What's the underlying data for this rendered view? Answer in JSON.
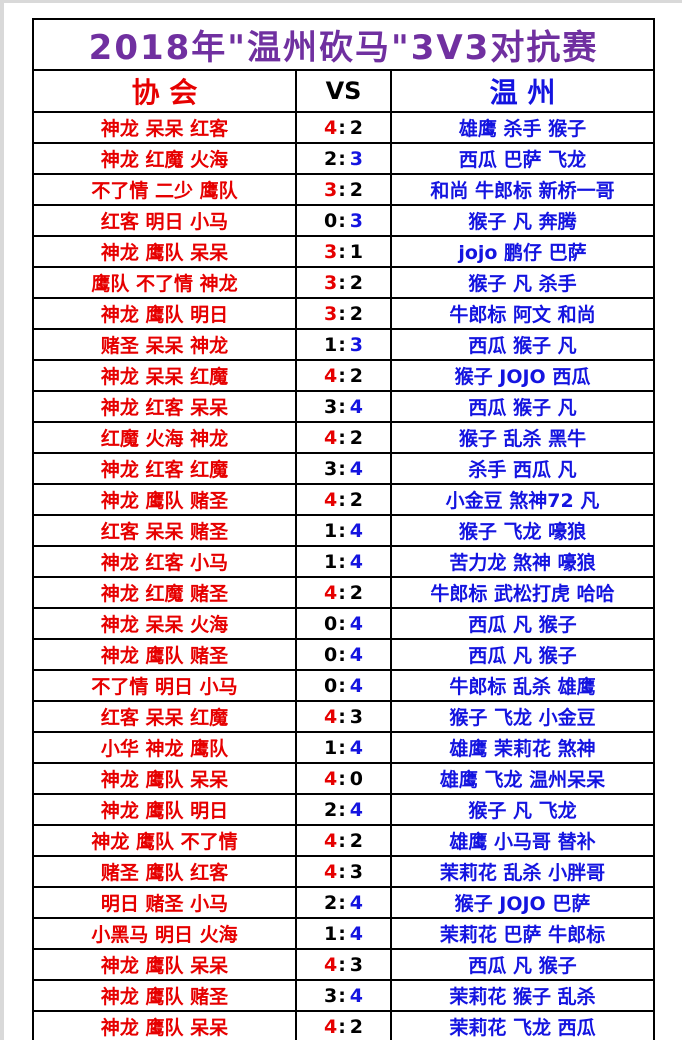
{
  "title": "2018年\"温州砍马\"3V3对抗赛",
  "header": {
    "association": "协  会",
    "vs": "VS",
    "wenzhou": "温  州"
  },
  "colors": {
    "title": "#7030A0",
    "association_text": "#E60000",
    "wenzhou_text": "#1414E0",
    "loser_score": "#000000",
    "border": "#000000",
    "page_edge": "#d9d9d9"
  },
  "rows": [
    {
      "association": "神龙 呆呆 红客",
      "score_left": "4",
      "score_right": "2",
      "winner": "left",
      "wenzhou": "雄鹰 杀手 猴子"
    },
    {
      "association": "神龙 红魔 火海",
      "score_left": "2",
      "score_right": "3",
      "winner": "right",
      "wenzhou": "西瓜 巴萨 飞龙"
    },
    {
      "association": "不了情 二少 鹰队",
      "score_left": "3",
      "score_right": "2",
      "winner": "left",
      "wenzhou": "和尚 牛郎标 新桥一哥"
    },
    {
      "association": "红客 明日 小马",
      "score_left": "0",
      "score_right": "3",
      "winner": "right",
      "wenzhou": "猴子 凡 奔腾"
    },
    {
      "association": "神龙 鹰队 呆呆",
      "score_left": "3",
      "score_right": "1",
      "winner": "left",
      "wenzhou": "jojo 鹏仔 巴萨"
    },
    {
      "association": "鹰队 不了情 神龙",
      "score_left": "3",
      "score_right": "2",
      "winner": "left",
      "wenzhou": "猴子 凡 杀手"
    },
    {
      "association": "神龙 鹰队 明日",
      "score_left": "3",
      "score_right": "2",
      "winner": "left",
      "wenzhou": "牛郎标 阿文 和尚"
    },
    {
      "association": "赌圣 呆呆 神龙",
      "score_left": "1",
      "score_right": "3",
      "winner": "right",
      "wenzhou": "西瓜 猴子 凡"
    },
    {
      "association": "神龙 呆呆 红魔",
      "score_left": "4",
      "score_right": "2",
      "winner": "left",
      "wenzhou": "猴子 JOJO 西瓜"
    },
    {
      "association": "神龙 红客 呆呆",
      "score_left": "3",
      "score_right": "4",
      "winner": "right",
      "wenzhou": "西瓜 猴子 凡"
    },
    {
      "association": "红魔 火海 神龙",
      "score_left": "4",
      "score_right": "2",
      "winner": "left",
      "wenzhou": "猴子 乱杀 黑牛"
    },
    {
      "association": "神龙 红客 红魔",
      "score_left": "3",
      "score_right": "4",
      "winner": "right",
      "wenzhou": "杀手 西瓜 凡"
    },
    {
      "association": "神龙 鹰队 赌圣",
      "score_left": "4",
      "score_right": "2",
      "winner": "left",
      "wenzhou": "小金豆 煞神72 凡"
    },
    {
      "association": "红客 呆呆 赌圣",
      "score_left": "1",
      "score_right": "4",
      "winner": "right",
      "wenzhou": "猴子 飞龙 嚎狼"
    },
    {
      "association": "神龙 红客 小马",
      "score_left": "1",
      "score_right": "4",
      "winner": "right",
      "wenzhou": "苦力龙 煞神 嚎狼"
    },
    {
      "association": "神龙 红魔 赌圣",
      "score_left": "4",
      "score_right": "2",
      "winner": "left",
      "wenzhou": "牛郎标 武松打虎 哈哈"
    },
    {
      "association": "神龙 呆呆 火海",
      "score_left": "0",
      "score_right": "4",
      "winner": "right",
      "wenzhou": "西瓜 凡 猴子"
    },
    {
      "association": "神龙 鹰队 赌圣",
      "score_left": "0",
      "score_right": "4",
      "winner": "right",
      "wenzhou": "西瓜 凡 猴子"
    },
    {
      "association": "不了情 明日 小马",
      "score_left": "0",
      "score_right": "4",
      "winner": "right",
      "wenzhou": "牛郎标 乱杀 雄鹰"
    },
    {
      "association": "红客 呆呆 红魔",
      "score_left": "4",
      "score_right": "3",
      "winner": "left",
      "wenzhou": "猴子 飞龙 小金豆"
    },
    {
      "association": "小华 神龙 鹰队",
      "score_left": "1",
      "score_right": "4",
      "winner": "right",
      "wenzhou": "雄鹰 茉莉花 煞神"
    },
    {
      "association": "神龙 鹰队 呆呆",
      "score_left": "4",
      "score_right": "0",
      "winner": "left",
      "wenzhou": "雄鹰 飞龙 温州呆呆"
    },
    {
      "association": "神龙 鹰队 明日",
      "score_left": "2",
      "score_right": "4",
      "winner": "right",
      "wenzhou": "猴子 凡 飞龙"
    },
    {
      "association": "神龙 鹰队 不了情",
      "score_left": "4",
      "score_right": "2",
      "winner": "left",
      "wenzhou": "雄鹰 小马哥 替补"
    },
    {
      "association": "赌圣 鹰队 红客",
      "score_left": "4",
      "score_right": "3",
      "winner": "left",
      "wenzhou": "茉莉花 乱杀 小胖哥"
    },
    {
      "association": "明日 赌圣 小马",
      "score_left": "2",
      "score_right": "4",
      "winner": "right",
      "wenzhou": "猴子 JOJO 巴萨"
    },
    {
      "association": "小黑马 明日 火海",
      "score_left": "1",
      "score_right": "4",
      "winner": "right",
      "wenzhou": "茉莉花 巴萨 牛郎标"
    },
    {
      "association": "神龙 鹰队 呆呆",
      "score_left": "4",
      "score_right": "3",
      "winner": "left",
      "wenzhou": "西瓜 凡 猴子"
    },
    {
      "association": "神龙 鹰队 赌圣",
      "score_left": "3",
      "score_right": "4",
      "winner": "right",
      "wenzhou": "茉莉花 猴子 乱杀"
    },
    {
      "association": "神龙 鹰队 呆呆",
      "score_left": "4",
      "score_right": "2",
      "winner": "left",
      "wenzhou": "茉莉花 飞龙 西瓜"
    }
  ]
}
